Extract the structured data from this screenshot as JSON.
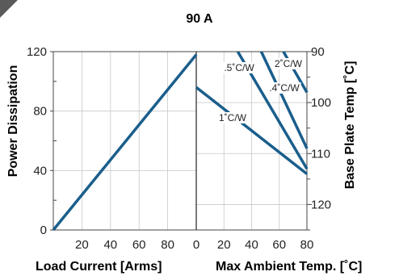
{
  "chart_data": [
    {
      "type": "line",
      "title": "90 A",
      "xlabel": "Load Current [Arms]",
      "ylabel": "Power Dissipation",
      "xlim": [
        0,
        100
      ],
      "ylim": [
        0,
        120
      ],
      "xticks": [
        20,
        40,
        60,
        80
      ],
      "yticks": [
        0,
        40,
        80,
        120
      ],
      "grid": true,
      "series": [
        {
          "name": "",
          "x": [
            0,
            100
          ],
          "y": [
            0,
            118
          ]
        }
      ],
      "line_color": "#1a5e8c"
    },
    {
      "type": "line",
      "xlabel": "Max Ambient Temp. [˚C]",
      "ylabel": "Base Plate Temp [˚C]",
      "xlim": [
        0,
        80
      ],
      "ylim": [
        125,
        90
      ],
      "xticks": [
        0,
        20,
        40,
        60,
        80
      ],
      "yticks": [
        90,
        100,
        110,
        120
      ],
      "grid": true,
      "series": [
        {
          "name": "1˚C/W",
          "x": [
            0,
            80
          ],
          "y": [
            97,
            114
          ]
        },
        {
          "name": ".5˚C/W",
          "x": [
            30,
            80
          ],
          "y": [
            90,
            113
          ]
        },
        {
          "name": ".4˚C/W",
          "x": [
            47,
            80
          ],
          "y": [
            90,
            109
          ]
        },
        {
          "name": "2˚C/W",
          "x": [
            63,
            80
          ],
          "y": [
            90,
            98
          ]
        }
      ],
      "line_color": "#1a5e8c"
    }
  ]
}
